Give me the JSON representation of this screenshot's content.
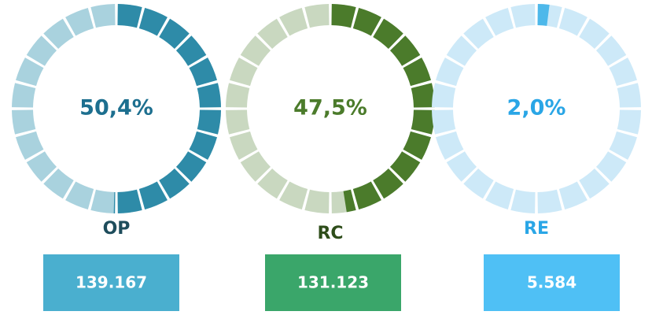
{
  "chart_data": [
    {
      "type": "gauge",
      "title": "OP",
      "values": [
        50.4
      ],
      "value_labels": [
        "50,4%"
      ],
      "ylim": [
        0,
        100
      ],
      "segments": 24,
      "color": "#2e8ba8",
      "track_color": "#a9d2de",
      "text_color": "#1d6f8f",
      "title_color": "#1e4d5c",
      "amount": 139167,
      "amount_label": "139.167",
      "amount_color": "#4aafcf"
    },
    {
      "type": "gauge",
      "title": "RC",
      "values": [
        47.5
      ],
      "value_labels": [
        "47,5%"
      ],
      "ylim": [
        0,
        100
      ],
      "segments": 24,
      "color": "#4b7b2b",
      "track_color": "#c9d8c0",
      "text_color": "#4b7b2b",
      "title_color": "#2e4d1a",
      "amount": 131123,
      "amount_label": "131.123",
      "amount_color": "#3aa66a"
    },
    {
      "type": "gauge",
      "title": "RE",
      "values": [
        2.0
      ],
      "value_labels": [
        "2,0%"
      ],
      "ylim": [
        0,
        100
      ],
      "segments": 24,
      "color": "#4db8ea",
      "track_color": "#cde9f8",
      "text_color": "#2aa6e6",
      "title_color": "#2aa6e6",
      "amount": 5584,
      "amount_label": "5.584",
      "amount_color": "#4fc0f5"
    }
  ]
}
